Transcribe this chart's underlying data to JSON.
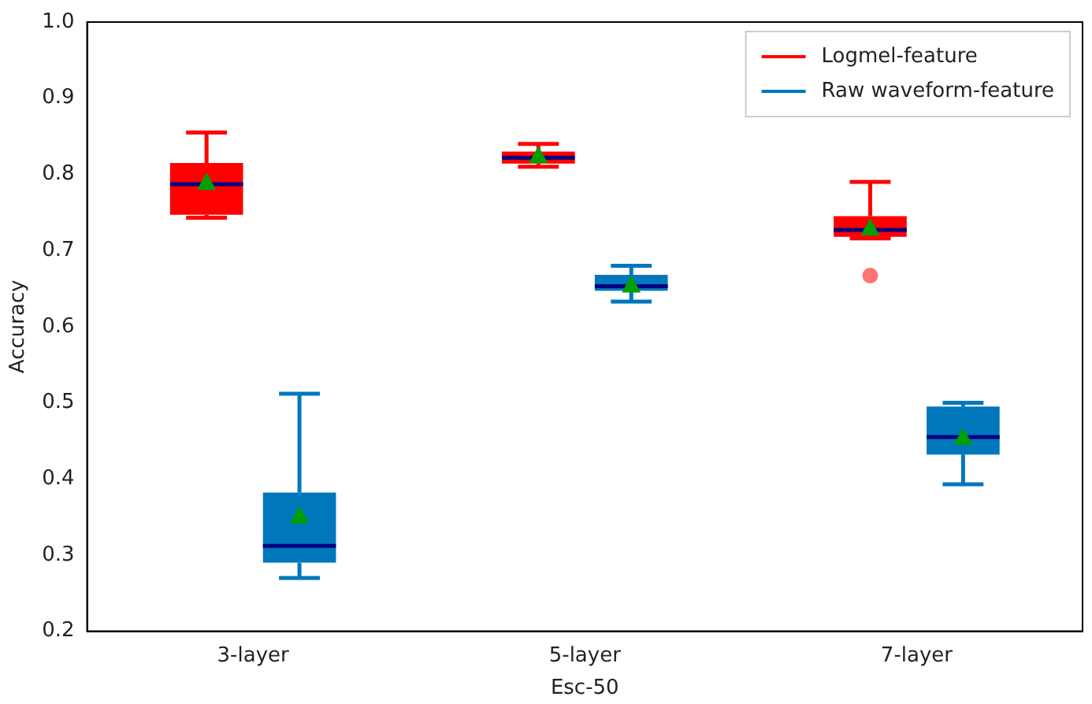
{
  "chart_data": {
    "type": "box",
    "xlabel": "Esc-50",
    "ylabel": "Accuracy",
    "categories": [
      "3-layer",
      "5-layer",
      "7-layer"
    ],
    "ylim": [
      0.2,
      1.0
    ],
    "yticks": [
      {
        "value": 0.2,
        "label": "0.2"
      },
      {
        "value": 0.3,
        "label": "0.3"
      },
      {
        "value": 0.4,
        "label": "0.4"
      },
      {
        "value": 0.5,
        "label": "0.5"
      },
      {
        "value": 0.6,
        "label": "0.6"
      },
      {
        "value": 0.7,
        "label": "0.7"
      },
      {
        "value": 0.8,
        "label": "0.8"
      },
      {
        "value": 0.9,
        "label": "0.9"
      },
      {
        "value": 1.0,
        "label": "1.0"
      }
    ],
    "legend": "top right",
    "grid": false,
    "series": [
      {
        "name": "Logmel-feature",
        "color": "#ff0000",
        "boxes": [
          {
            "low": 0.743,
            "q1": 0.747,
            "median": 0.787,
            "q3": 0.815,
            "high": 0.855,
            "mean": 0.79
          },
          {
            "low": 0.81,
            "q1": 0.814,
            "median": 0.822,
            "q3": 0.83,
            "high": 0.84,
            "mean": 0.825
          },
          {
            "low": 0.716,
            "q1": 0.718,
            "median": 0.727,
            "q3": 0.745,
            "high": 0.79,
            "mean": 0.73,
            "outliers": [
              0.667
            ]
          }
        ]
      },
      {
        "name": "Raw waveform-feature",
        "color": "#0077bb",
        "boxes": [
          {
            "low": 0.27,
            "q1": 0.29,
            "median": 0.312,
            "q3": 0.382,
            "high": 0.512,
            "mean": 0.352
          },
          {
            "low": 0.633,
            "q1": 0.647,
            "median": 0.653,
            "q3": 0.668,
            "high": 0.68,
            "mean": 0.655
          },
          {
            "low": 0.393,
            "q1": 0.432,
            "median": 0.455,
            "q3": 0.495,
            "high": 0.5,
            "mean": 0.455
          }
        ]
      }
    ]
  }
}
